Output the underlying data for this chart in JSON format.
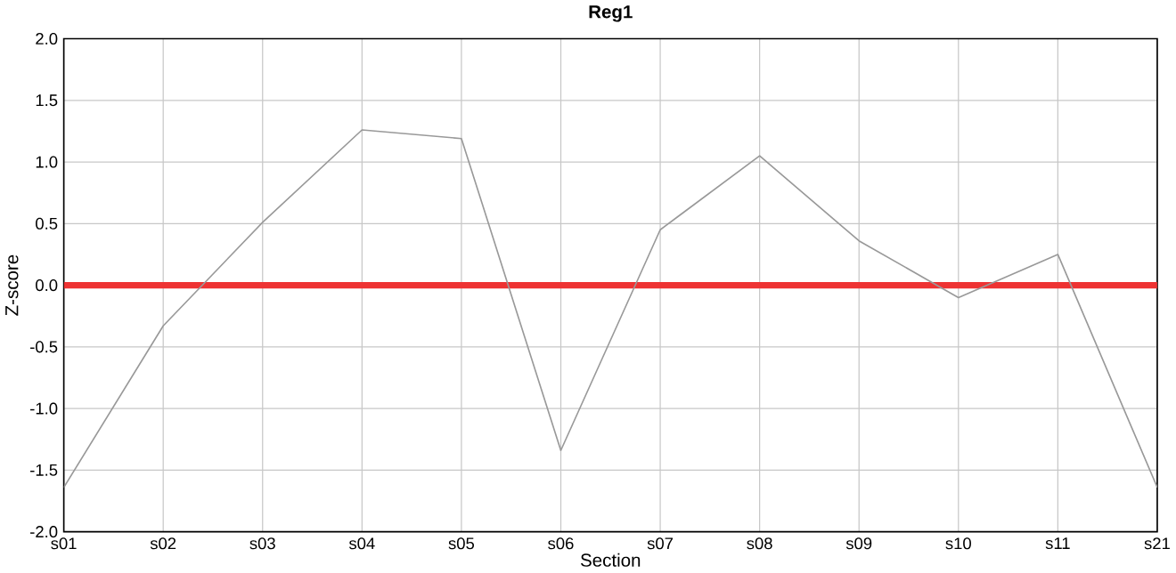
{
  "chart_data": {
    "type": "line",
    "title": "Reg1",
    "xlabel": "Section",
    "ylabel": "Z-score",
    "categories": [
      "s01",
      "s02",
      "s03",
      "s04",
      "s05",
      "s06",
      "s07",
      "s08",
      "s09",
      "s10",
      "s11",
      "s21"
    ],
    "series": [
      {
        "color": "#999999",
        "values": [
          -1.64,
          -0.33,
          0.51,
          1.26,
          1.19,
          -1.34,
          0.45,
          1.05,
          0.36,
          -0.1,
          0.25,
          -1.64
        ]
      }
    ],
    "ylim": [
      -2.0,
      2.0
    ],
    "yticks": [
      {
        "value": -2.0,
        "label": "-2.0"
      },
      {
        "value": -1.5,
        "label": "-1.5"
      },
      {
        "value": -1.0,
        "label": "-1.0"
      },
      {
        "value": -0.5,
        "label": "-0.5"
      },
      {
        "value": 0.0,
        "label": "0.0"
      },
      {
        "value": 0.5,
        "label": "0.5"
      },
      {
        "value": 1.0,
        "label": "1.0"
      },
      {
        "value": 1.5,
        "label": "1.5"
      },
      {
        "value": 2.0,
        "label": "2.0"
      }
    ],
    "ref_lines": [
      {
        "axis": "y",
        "value": 0,
        "color": "#ee3333"
      }
    ],
    "grid": true,
    "marker": "none",
    "line_style": "solid"
  }
}
